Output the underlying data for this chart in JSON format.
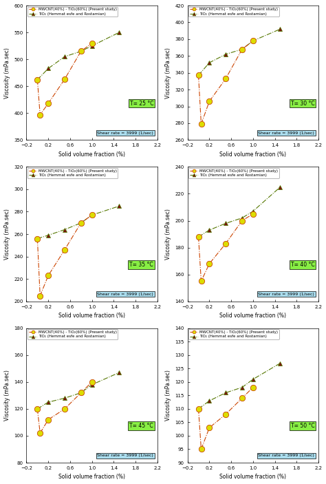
{
  "panels": [
    {
      "temp": "T= 25 °C",
      "ylim": [
        350,
        600
      ],
      "yticks": [
        350,
        400,
        450,
        500,
        550,
        600
      ],
      "series1_x": [
        0.0,
        0.05,
        0.2,
        0.5,
        0.8,
        1.0
      ],
      "series1_y": [
        462,
        397,
        418,
        463,
        515,
        530
      ],
      "series2_x": [
        0.0,
        0.2,
        0.5,
        0.8,
        1.0,
        1.5
      ],
      "series2_y": [
        462,
        483,
        505,
        515,
        525,
        550
      ]
    },
    {
      "temp": "T= 30 °C",
      "ylim": [
        260,
        420
      ],
      "yticks": [
        260,
        280,
        300,
        320,
        340,
        360,
        380,
        400,
        420
      ],
      "series1_x": [
        0.0,
        0.05,
        0.2,
        0.5,
        0.8,
        1.0
      ],
      "series1_y": [
        337,
        279,
        306,
        333,
        368,
        378
      ],
      "series2_x": [
        0.0,
        0.2,
        0.5,
        0.8,
        1.0,
        1.5
      ],
      "series2_y": [
        337,
        352,
        362,
        368,
        378,
        392
      ]
    },
    {
      "temp": "T= 35 °C",
      "ylim": [
        200,
        320
      ],
      "yticks": [
        200,
        220,
        240,
        260,
        280,
        300,
        320
      ],
      "series1_x": [
        0.0,
        0.05,
        0.2,
        0.5,
        0.8,
        1.0
      ],
      "series1_y": [
        256,
        205,
        223,
        246,
        270,
        277
      ],
      "series2_x": [
        0.0,
        0.2,
        0.5,
        0.8,
        1.0,
        1.5
      ],
      "series2_y": [
        256,
        259,
        264,
        270,
        277,
        285
      ]
    },
    {
      "temp": "T= 40 °C",
      "ylim": [
        140,
        240
      ],
      "yticks": [
        140,
        160,
        180,
        200,
        220,
        240
      ],
      "series1_x": [
        0.0,
        0.05,
        0.2,
        0.5,
        0.8,
        1.0
      ],
      "series1_y": [
        188,
        155,
        168,
        183,
        200,
        205
      ],
      "series2_x": [
        0.0,
        0.2,
        0.5,
        0.8,
        1.0,
        1.5
      ],
      "series2_y": [
        188,
        193,
        198,
        202,
        207,
        225
      ]
    },
    {
      "temp": "T= 45 °C",
      "ylim": [
        80,
        180
      ],
      "yticks": [
        80,
        100,
        120,
        140,
        160,
        180
      ],
      "series1_x": [
        0.0,
        0.05,
        0.2,
        0.5,
        0.8,
        1.0
      ],
      "series1_y": [
        120,
        102,
        112,
        120,
        132,
        140
      ],
      "series2_x": [
        0.0,
        0.2,
        0.5,
        0.8,
        1.0,
        1.5
      ],
      "series2_y": [
        120,
        125,
        128,
        132,
        138,
        147
      ]
    },
    {
      "temp": "T= 50 °C",
      "ylim": [
        90,
        140
      ],
      "yticks": [
        90,
        95,
        100,
        105,
        110,
        115,
        120,
        125,
        130,
        135,
        140
      ],
      "series1_x": [
        0.0,
        0.05,
        0.2,
        0.5,
        0.8,
        1.0
      ],
      "series1_y": [
        110,
        95,
        103,
        108,
        114,
        118
      ],
      "series2_x": [
        0.0,
        0.2,
        0.5,
        0.8,
        1.0,
        1.5
      ],
      "series2_y": [
        110,
        113,
        116,
        118,
        121,
        127
      ]
    }
  ],
  "xlim": [
    -0.2,
    2.2
  ],
  "xticks": [
    -0.2,
    0.2,
    0.6,
    1.0,
    1.4,
    1.8,
    2.2
  ],
  "xlabel": "Solid volume fraction (%)",
  "ylabel": "Viscosity (mPa.sec)",
  "shear_rate_text": "Shear rate = 3999 (1/sec)",
  "legend1": "MWCNT(40%) - TiO₂(60%) (Present study)",
  "legend2": "TiO₂ (Hemmat esfe and Rostamian)",
  "color1": "#cc4400",
  "color2": "#557700",
  "marker_color1": "#dddd00",
  "marker_color2": "#7b1010",
  "temp_box_color": "#88ee44",
  "shear_box_color": "#aaddee"
}
